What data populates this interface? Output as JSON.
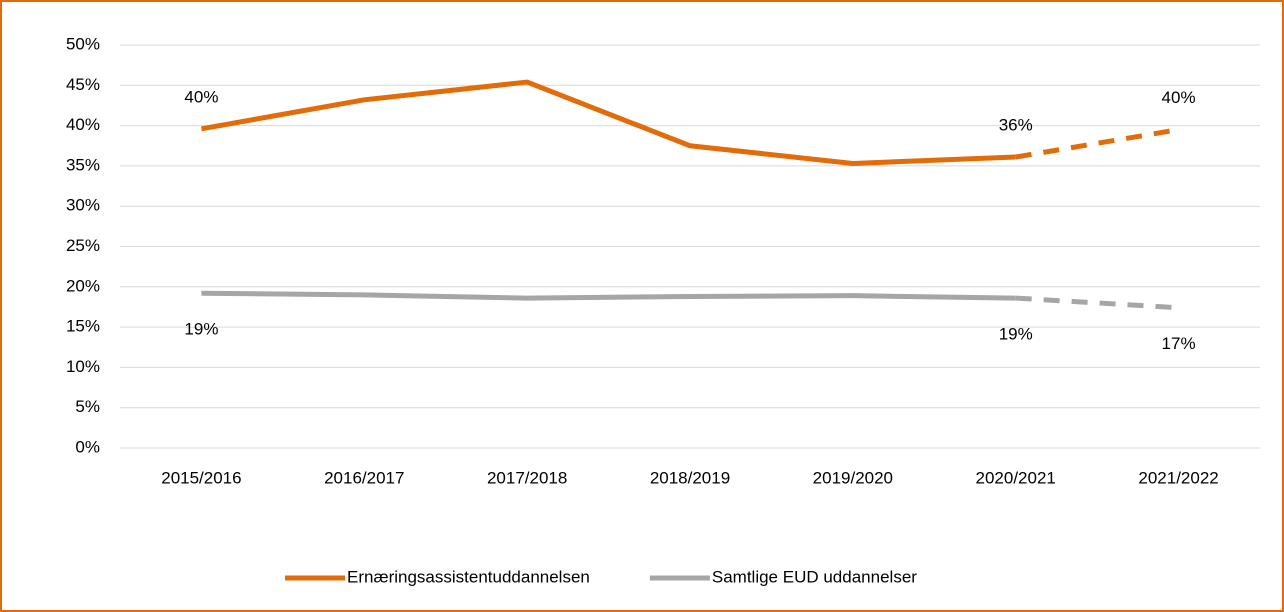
{
  "chart_data": {
    "type": "line",
    "categories": [
      "2015/2016",
      "2016/2017",
      "2017/2018",
      "2018/2019",
      "2019/2020",
      "2020/2021",
      "2021/2022"
    ],
    "series": [
      {
        "name": "Ernæringsassistentuddannelsen",
        "color": "#e36c0a",
        "dashed_from_index": 5,
        "label_position": "above",
        "values": [
          39.6,
          43.2,
          45.4,
          37.5,
          35.3,
          36.1,
          39.5
        ],
        "value_labels": [
          "40%",
          null,
          null,
          null,
          null,
          "36%",
          "40%"
        ]
      },
      {
        "name": "Samtlige EUD uddannelser",
        "color": "#a6a6a6",
        "dashed_from_index": 5,
        "label_position": "below",
        "values": [
          19.2,
          19.0,
          18.6,
          18.8,
          18.9,
          18.6,
          17.4
        ],
        "value_labels": [
          "19%",
          null,
          null,
          null,
          null,
          "19%",
          "17%"
        ]
      }
    ],
    "ylim": [
      0,
      50
    ],
    "yticks": [
      {
        "value": 0,
        "label": "0%"
      },
      {
        "value": 5,
        "label": "5%"
      },
      {
        "value": 10,
        "label": "10%"
      },
      {
        "value": 15,
        "label": "15%"
      },
      {
        "value": 20,
        "label": "20%"
      },
      {
        "value": 25,
        "label": "25%"
      },
      {
        "value": 30,
        "label": "30%"
      },
      {
        "value": 35,
        "label": "35%"
      },
      {
        "value": 40,
        "label": "40%"
      },
      {
        "value": 45,
        "label": "45%"
      },
      {
        "value": 50,
        "label": "50%"
      }
    ],
    "grid": true,
    "legend": "bottom"
  }
}
